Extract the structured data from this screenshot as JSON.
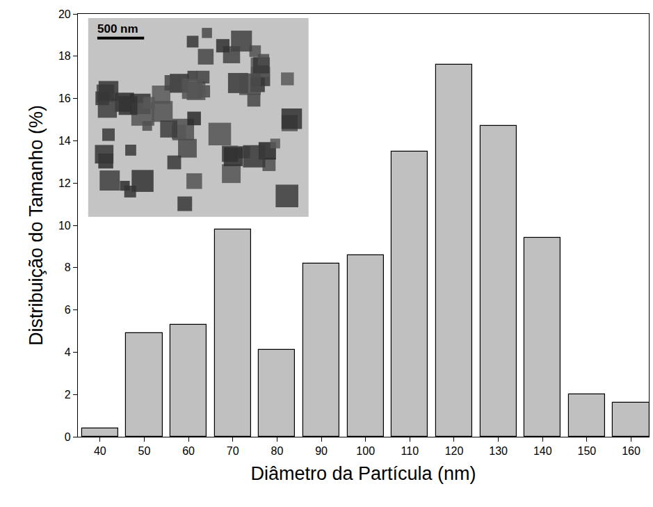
{
  "chart_data": {
    "type": "bar",
    "x": [
      40,
      50,
      60,
      70,
      80,
      90,
      100,
      110,
      120,
      130,
      140,
      150,
      160
    ],
    "values": [
      0.4,
      4.9,
      5.3,
      9.8,
      4.1,
      8.2,
      8.6,
      13.5,
      17.6,
      14.7,
      9.4,
      2.0,
      1.6
    ],
    "color": "#c0c0c0",
    "xlabel": "Diâmetro da Partícula (nm)",
    "ylabel": "Distribuição do Tamanho (%)",
    "xlim": [
      35,
      164
    ],
    "xticks": [
      40,
      50,
      60,
      70,
      80,
      90,
      100,
      110,
      120,
      130,
      140,
      150,
      160
    ],
    "ylim": [
      0,
      20
    ],
    "yticks": [
      0,
      2,
      4,
      6,
      8,
      10,
      12,
      14,
      16,
      18,
      20
    ],
    "grid": false,
    "annotations": [
      "500 nm"
    ]
  }
}
